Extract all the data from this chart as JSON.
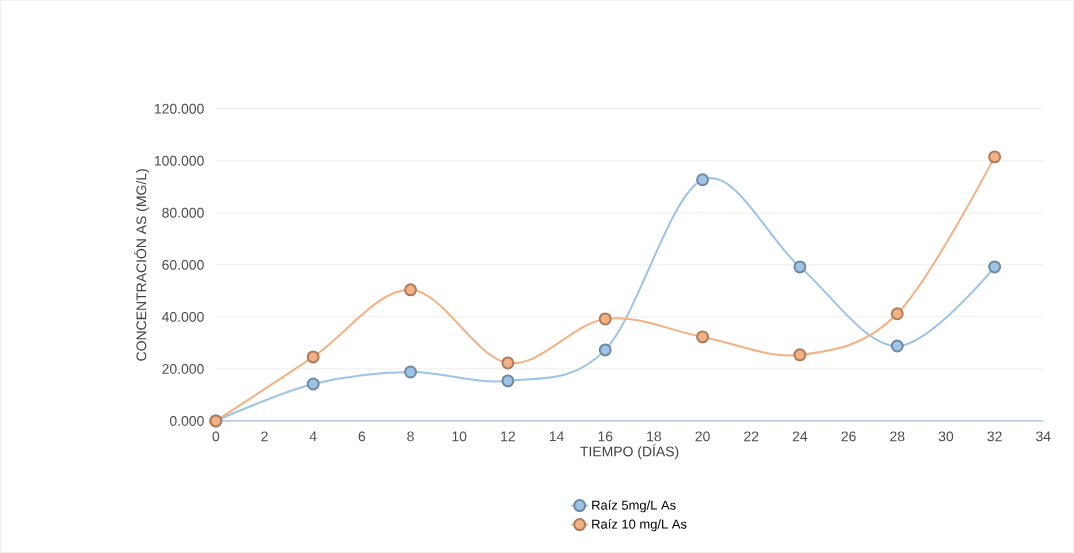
{
  "chart_data": {
    "type": "line",
    "xlabel": "TIEMPO (DÍAS)",
    "ylabel": "CONCENTRACIÓN AS (MG/L)",
    "x": [
      0,
      4,
      8,
      12,
      16,
      20,
      24,
      28,
      32
    ],
    "series": [
      {
        "name": "Raíz 5mg/L As",
        "color": "#9dc3e6",
        "values": [
          0,
          14.2,
          18.8,
          15.4,
          27.3,
          92.7,
          59.2,
          28.8,
          59.2
        ]
      },
      {
        "name": "Raíz 10 mg/L As",
        "color": "#f4b183",
        "values": [
          0,
          24.6,
          50.4,
          22.3,
          39.2,
          32.3,
          25.4,
          41.2,
          101.5
        ]
      }
    ],
    "xlim": [
      0,
      34
    ],
    "xticks": [
      0,
      2,
      4,
      6,
      8,
      10,
      12,
      14,
      16,
      18,
      20,
      22,
      24,
      26,
      28,
      30,
      32,
      34
    ],
    "ylim": [
      0,
      120
    ],
    "yticks": [
      {
        "value": 0,
        "label": "0.000"
      },
      {
        "value": 20,
        "label": "20.000"
      },
      {
        "value": 40,
        "label": "40.000"
      },
      {
        "value": 60,
        "label": "60.000"
      },
      {
        "value": 80,
        "label": "80.000"
      },
      {
        "value": 100,
        "label": "100.000"
      },
      {
        "value": 120,
        "label": "120.000"
      }
    ],
    "grid": "y",
    "legend": "bottom",
    "marker": "circle",
    "line_style": "solid"
  }
}
